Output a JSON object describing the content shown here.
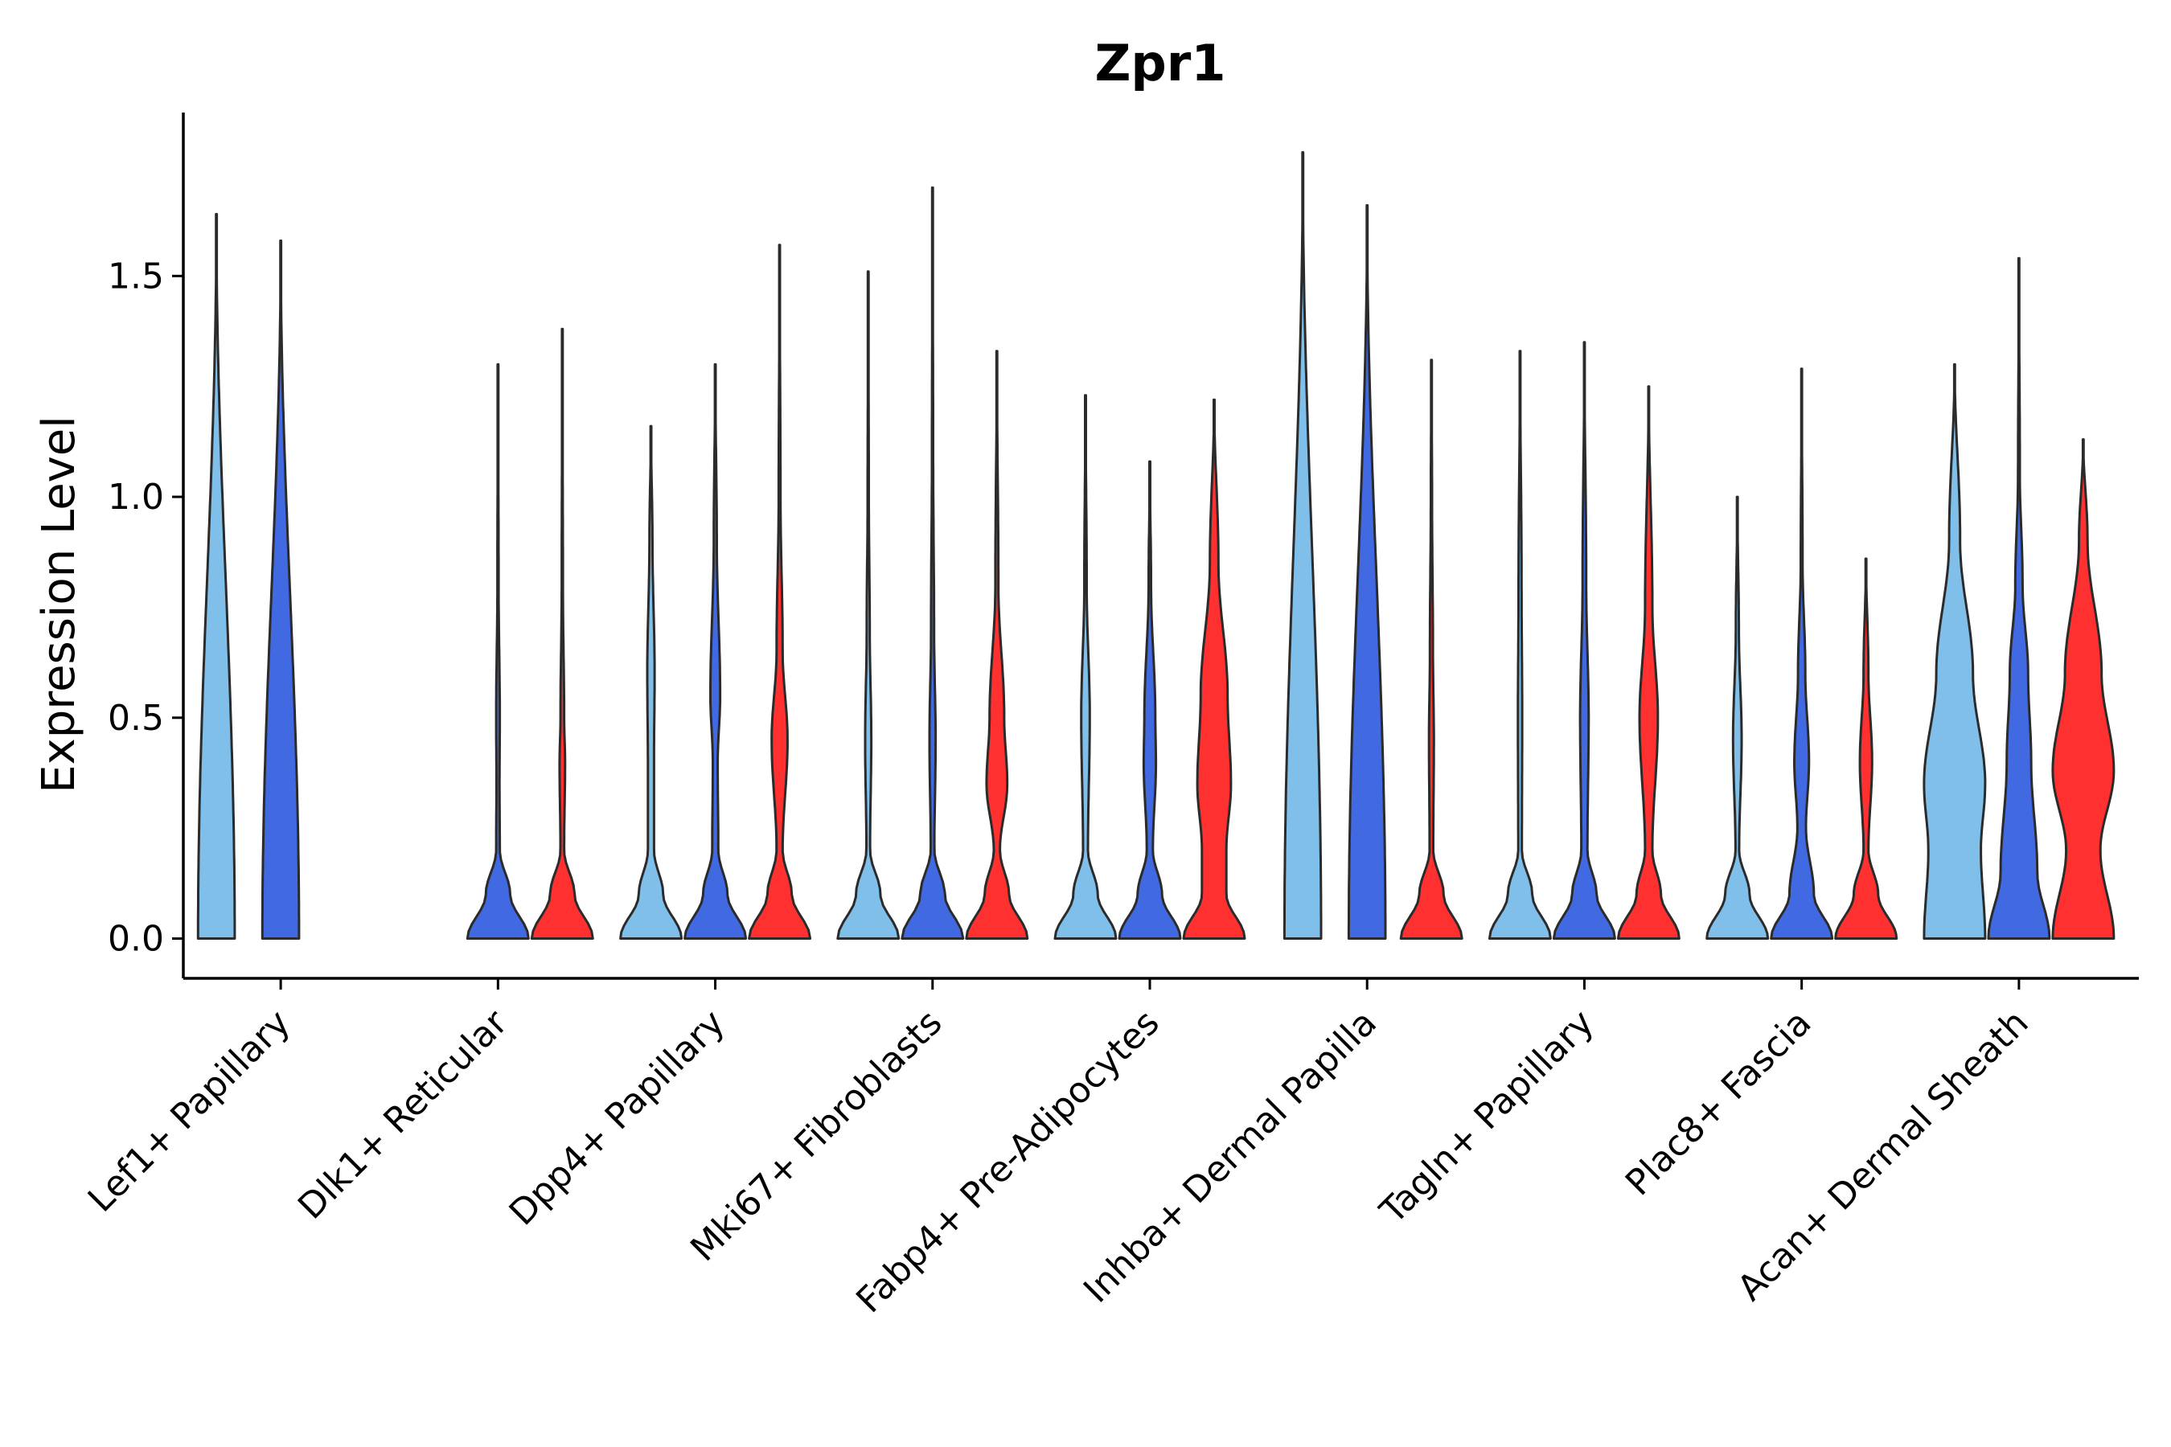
{
  "chart_data": {
    "type": "violin",
    "title": "Zpr1",
    "xlabel": "",
    "ylabel": "Expression Level",
    "ylim": [
      -0.09,
      1.87
    ],
    "yticks": [
      "0.0",
      "0.5",
      "1.0",
      "1.5"
    ],
    "ytick_values": [
      0.0,
      0.5,
      1.0,
      1.5
    ],
    "categories": [
      "Lef1+ Papillary",
      "Dlk1+ Reticular",
      "Dpp4+ Papillary",
      "Mki67+ Fibroblasts",
      "Fabp4+ Pre-Adipocytes",
      "Inhba+ Dermal Papilla",
      "Tagln+ Papillary",
      "Plac8+ Fascia",
      "Acan+ Dermal Sheath"
    ],
    "series_colors": [
      "#7fbfea",
      "#4169e1",
      "#ff3030"
    ],
    "violins": [
      [
        {
          "max": 1.64,
          "profile": [
            [
              0,
              0.6
            ]
          ]
        },
        {
          "max": 1.58,
          "profile": [
            [
              0,
              0.6
            ]
          ]
        },
        null
      ],
      [
        null,
        {
          "max": 1.3,
          "profile": [
            [
              0,
              1.0
            ],
            [
              0.1,
              0.4
            ],
            [
              0.2,
              0.06
            ],
            [
              0.35,
              0.05
            ],
            [
              0.5,
              0.06
            ],
            [
              0.8,
              0.02
            ]
          ]
        },
        {
          "max": 1.38,
          "profile": [
            [
              0,
              1.0
            ],
            [
              0.1,
              0.4
            ],
            [
              0.2,
              0.06
            ],
            [
              0.4,
              0.09
            ],
            [
              0.5,
              0.06
            ],
            [
              0.8,
              0.02
            ]
          ]
        }
      ],
      [
        {
          "max": 1.16,
          "profile": [
            [
              0,
              1.0
            ],
            [
              0.1,
              0.4
            ],
            [
              0.2,
              0.1
            ],
            [
              0.4,
              0.1
            ],
            [
              0.6,
              0.12
            ],
            [
              0.9,
              0.05
            ]
          ]
        },
        {
          "max": 1.3,
          "profile": [
            [
              0,
              1.0
            ],
            [
              0.1,
              0.4
            ],
            [
              0.2,
              0.1
            ],
            [
              0.4,
              0.08
            ],
            [
              0.55,
              0.16
            ],
            [
              0.9,
              0.05
            ]
          ]
        },
        {
          "max": 1.57,
          "profile": [
            [
              0,
              1.0
            ],
            [
              0.1,
              0.4
            ],
            [
              0.2,
              0.1
            ],
            [
              0.45,
              0.26
            ],
            [
              0.65,
              0.1
            ],
            [
              1.0,
              0.03
            ]
          ]
        }
      ],
      [
        {
          "max": 1.51,
          "profile": [
            [
              0,
              1.0
            ],
            [
              0.1,
              0.4
            ],
            [
              0.2,
              0.06
            ],
            [
              0.45,
              0.1
            ],
            [
              0.7,
              0.05
            ],
            [
              1.0,
              0.02
            ]
          ]
        },
        {
          "max": 1.7,
          "profile": [
            [
              0,
              1.0
            ],
            [
              0.1,
              0.4
            ],
            [
              0.2,
              0.06
            ],
            [
              0.45,
              0.1
            ],
            [
              0.7,
              0.05
            ],
            [
              1.1,
              0.02
            ]
          ]
        },
        {
          "max": 1.33,
          "profile": [
            [
              0,
              1.0
            ],
            [
              0.1,
              0.4
            ],
            [
              0.2,
              0.1
            ],
            [
              0.35,
              0.34
            ],
            [
              0.5,
              0.24
            ],
            [
              0.8,
              0.05
            ]
          ]
        }
      ],
      [
        {
          "max": 1.23,
          "profile": [
            [
              0,
              1.0
            ],
            [
              0.1,
              0.4
            ],
            [
              0.2,
              0.08
            ],
            [
              0.5,
              0.14
            ],
            [
              0.8,
              0.04
            ]
          ]
        },
        {
          "max": 1.08,
          "profile": [
            [
              0,
              1.0
            ],
            [
              0.1,
              0.4
            ],
            [
              0.2,
              0.1
            ],
            [
              0.4,
              0.2
            ],
            [
              0.5,
              0.18
            ],
            [
              0.8,
              0.04
            ]
          ]
        },
        {
          "max": 1.22,
          "profile": [
            [
              0,
              1.0
            ],
            [
              0.1,
              0.4
            ],
            [
              0.2,
              0.4
            ],
            [
              0.35,
              0.55
            ],
            [
              0.55,
              0.44
            ],
            [
              0.85,
              0.14
            ]
          ]
        }
      ],
      [
        {
          "max": 1.78,
          "profile": [
            [
              0,
              0.6
            ]
          ]
        },
        {
          "max": 1.66,
          "profile": [
            [
              0,
              0.6
            ]
          ]
        },
        {
          "max": 1.31,
          "profile": [
            [
              0,
              1.0
            ],
            [
              0.1,
              0.4
            ],
            [
              0.2,
              0.06
            ],
            [
              0.45,
              0.08
            ],
            [
              0.65,
              0.05
            ],
            [
              1.0,
              0.02
            ]
          ]
        }
      ],
      [
        {
          "max": 1.33,
          "profile": [
            [
              0,
              1.0
            ],
            [
              0.1,
              0.4
            ],
            [
              0.2,
              0.06
            ],
            [
              0.5,
              0.07
            ],
            [
              0.8,
              0.05
            ]
          ]
        },
        {
          "max": 1.35,
          "profile": [
            [
              0,
              1.0
            ],
            [
              0.1,
              0.4
            ],
            [
              0.2,
              0.1
            ],
            [
              0.5,
              0.14
            ],
            [
              0.8,
              0.06
            ]
          ]
        },
        {
          "max": 1.25,
          "profile": [
            [
              0,
              1.0
            ],
            [
              0.1,
              0.4
            ],
            [
              0.2,
              0.12
            ],
            [
              0.5,
              0.3
            ],
            [
              0.75,
              0.12
            ]
          ]
        }
      ],
      [
        {
          "max": 1.0,
          "profile": [
            [
              0,
              1.0
            ],
            [
              0.1,
              0.4
            ],
            [
              0.2,
              0.06
            ],
            [
              0.45,
              0.14
            ],
            [
              0.7,
              0.05
            ]
          ]
        },
        {
          "max": 1.29,
          "profile": [
            [
              0,
              1.0
            ],
            [
              0.1,
              0.4
            ],
            [
              0.25,
              0.14
            ],
            [
              0.4,
              0.24
            ],
            [
              0.6,
              0.12
            ],
            [
              0.85,
              0.03
            ]
          ]
        },
        {
          "max": 0.86,
          "profile": [
            [
              0,
              1.0
            ],
            [
              0.1,
              0.4
            ],
            [
              0.2,
              0.08
            ],
            [
              0.4,
              0.2
            ],
            [
              0.6,
              0.08
            ]
          ]
        }
      ],
      [
        {
          "max": 1.3,
          "profile": [
            [
              0,
              1.0
            ],
            [
              0.2,
              0.86
            ],
            [
              0.35,
              1.0
            ],
            [
              0.6,
              0.6
            ],
            [
              0.9,
              0.18
            ]
          ]
        },
        {
          "max": 1.54,
          "profile": [
            [
              0,
              1.0
            ],
            [
              0.15,
              0.6
            ],
            [
              0.4,
              0.4
            ],
            [
              0.6,
              0.3
            ],
            [
              0.8,
              0.12
            ],
            [
              1.05,
              0.03
            ]
          ]
        },
        {
          "max": 1.13,
          "profile": [
            [
              0,
              1.0
            ],
            [
              0.2,
              0.56
            ],
            [
              0.38,
              1.0
            ],
            [
              0.6,
              0.6
            ],
            [
              0.9,
              0.14
            ]
          ]
        }
      ]
    ]
  }
}
